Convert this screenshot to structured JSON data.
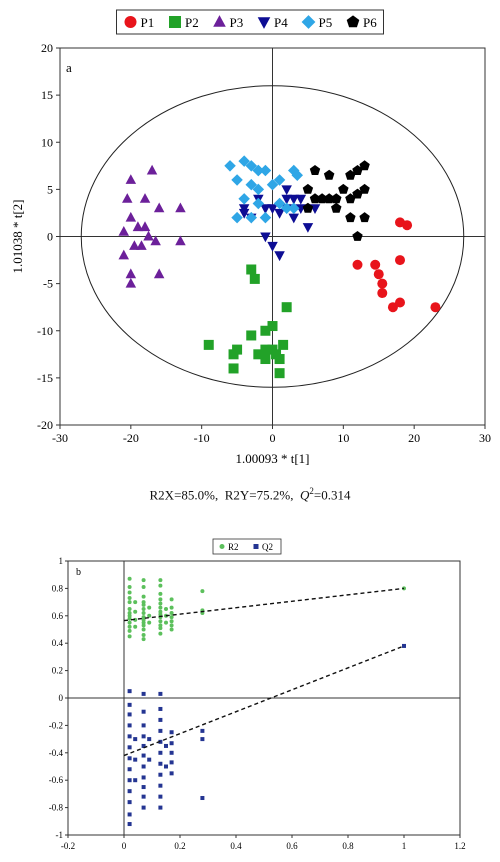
{
  "colors": {
    "P1": "#e8141b",
    "P2": "#22a228",
    "P3": "#6c209a",
    "P4": "#0d0d94",
    "P5": "#2fa6e6",
    "P6": "#000000",
    "R2": "#5cc05c",
    "Q2": "#243592"
  },
  "caption": {
    "r2x": "R2X=85.0%,",
    "r2y": "R2Y=75.2%,",
    "q_symbol": "Q",
    "q_sup": "2",
    "q_value": "=0.314"
  },
  "chart_data": [
    {
      "type": "scatter",
      "panel_label": "a",
      "xlabel": "1.00093 * t[1]",
      "ylabel": "1.01038 * t[2]",
      "xlim": [
        -30,
        30
      ],
      "ylim": [
        -20,
        20
      ],
      "xticks": [
        -30,
        -20,
        -10,
        0,
        10,
        20,
        30
      ],
      "yticks": [
        -20,
        -15,
        -10,
        -5,
        0,
        5,
        10,
        15,
        20
      ],
      "ellipse": {
        "center": [
          0,
          0
        ],
        "rx": 27,
        "ry": 16
      },
      "legend_position": "top",
      "series": [
        {
          "name": "P1",
          "marker": "circle",
          "points": [
            [
              18,
              1.5
            ],
            [
              19,
              1.2
            ],
            [
              12,
              -3
            ],
            [
              14.5,
              -3
            ],
            [
              15,
              -4
            ],
            [
              15.5,
              -5
            ],
            [
              15.5,
              -6
            ],
            [
              18,
              -2.5
            ],
            [
              17,
              -7.5
            ],
            [
              18,
              -7
            ],
            [
              23,
              -7.5
            ]
          ]
        },
        {
          "name": "P2",
          "marker": "square",
          "points": [
            [
              -9,
              -11.5
            ],
            [
              -5,
              -12
            ],
            [
              -5.5,
              -12.5
            ],
            [
              -5.5,
              -14
            ],
            [
              -3,
              -10.5
            ],
            [
              -1,
              -10
            ],
            [
              -1,
              -12
            ],
            [
              -2,
              -12.5
            ],
            [
              -1,
              -13
            ],
            [
              0,
              -9.5
            ],
            [
              0,
              -12
            ],
            [
              0.5,
              -12.5
            ],
            [
              1,
              -13
            ],
            [
              1,
              -14.5
            ],
            [
              1.5,
              -11.5
            ],
            [
              -3,
              -3.5
            ],
            [
              -2.5,
              -4.5
            ],
            [
              2,
              -7.5
            ]
          ]
        },
        {
          "name": "P3",
          "marker": "triangle",
          "points": [
            [
              -20,
              6
            ],
            [
              -17,
              7
            ],
            [
              -20.5,
              4
            ],
            [
              -18,
              4
            ],
            [
              -16,
              3
            ],
            [
              -20,
              2
            ],
            [
              -18,
              1
            ],
            [
              -13,
              3
            ],
            [
              -21,
              0.5
            ],
            [
              -19,
              1
            ],
            [
              -17.5,
              0
            ],
            [
              -16.5,
              -0.5
            ],
            [
              -19.5,
              -1
            ],
            [
              -18.5,
              -1
            ],
            [
              -13,
              -0.5
            ],
            [
              -21,
              -2
            ],
            [
              -20,
              -4
            ],
            [
              -16,
              -4
            ],
            [
              -20,
              -5
            ]
          ]
        },
        {
          "name": "P4",
          "marker": "triangle-down",
          "points": [
            [
              -4,
              3
            ],
            [
              -2,
              4
            ],
            [
              -1,
              3
            ],
            [
              0,
              3
            ],
            [
              1,
              2.5
            ],
            [
              2,
              3
            ],
            [
              3,
              2
            ],
            [
              4,
              3
            ],
            [
              5,
              1
            ],
            [
              2,
              5
            ],
            [
              3,
              4
            ],
            [
              -3,
              2
            ],
            [
              -4,
              2.5
            ],
            [
              1,
              -2
            ],
            [
              0,
              -1
            ],
            [
              -1,
              0
            ],
            [
              2,
              4
            ],
            [
              4,
              4
            ],
            [
              6,
              3
            ]
          ]
        },
        {
          "name": "P5",
          "marker": "diamond",
          "points": [
            [
              -6,
              7.5
            ],
            [
              -4,
              8
            ],
            [
              -3,
              7.5
            ],
            [
              -2,
              7
            ],
            [
              -1,
              7
            ],
            [
              -5,
              6
            ],
            [
              -3,
              5.5
            ],
            [
              -2,
              5
            ],
            [
              0,
              5.5
            ],
            [
              -4,
              4
            ],
            [
              -2,
              3.5
            ],
            [
              -5,
              2
            ],
            [
              -3,
              2
            ],
            [
              -1,
              2
            ],
            [
              1,
              3.5
            ],
            [
              3,
              7
            ],
            [
              3.5,
              6.5
            ],
            [
              2,
              3
            ],
            [
              3,
              3
            ],
            [
              1,
              6
            ],
            [
              -2,
              7
            ]
          ]
        },
        {
          "name": "P6",
          "marker": "pentagon",
          "points": [
            [
              6,
              7
            ],
            [
              8,
              6.5
            ],
            [
              10,
              5
            ],
            [
              11,
              6.5
            ],
            [
              12,
              7
            ],
            [
              13,
              7.5
            ],
            [
              13,
              5
            ],
            [
              12,
              4.5
            ],
            [
              11,
              4
            ],
            [
              9,
              4
            ],
            [
              8,
              4
            ],
            [
              7,
              4
            ],
            [
              6,
              4
            ],
            [
              5,
              5
            ],
            [
              5,
              3
            ],
            [
              9,
              3
            ],
            [
              11,
              2
            ],
            [
              13,
              2
            ],
            [
              12,
              0
            ]
          ]
        }
      ]
    },
    {
      "type": "scatter",
      "panel_label": "b",
      "xlim": [
        -0.2,
        1.2
      ],
      "ylim": [
        -1,
        1
      ],
      "xticks": [
        -0.2,
        0,
        0.2,
        0.4,
        0.6,
        0.8,
        1,
        1.2
      ],
      "ytick_labels": [
        "1",
        "0.8",
        "0.6",
        "0.4",
        "0.2",
        "0",
        "-0.2",
        "-0.4",
        "-0.6",
        "-0.8",
        "-1"
      ],
      "legend_position": "top",
      "series": [
        {
          "name": "R2",
          "marker": "circle",
          "points": [
            [
              0.02,
              0.87
            ],
            [
              0.02,
              0.81
            ],
            [
              0.02,
              0.77
            ],
            [
              0.02,
              0.73
            ],
            [
              0.02,
              0.7
            ],
            [
              0.02,
              0.65
            ],
            [
              0.02,
              0.62
            ],
            [
              0.02,
              0.6
            ],
            [
              0.02,
              0.58
            ],
            [
              0.02,
              0.55
            ],
            [
              0.02,
              0.52
            ],
            [
              0.02,
              0.49
            ],
            [
              0.02,
              0.45
            ],
            [
              0.04,
              0.7
            ],
            [
              0.04,
              0.63
            ],
            [
              0.04,
              0.57
            ],
            [
              0.04,
              0.52
            ],
            [
              0.07,
              0.86
            ],
            [
              0.07,
              0.81
            ],
            [
              0.07,
              0.74
            ],
            [
              0.07,
              0.7
            ],
            [
              0.07,
              0.68
            ],
            [
              0.07,
              0.65
            ],
            [
              0.07,
              0.62
            ],
            [
              0.07,
              0.59
            ],
            [
              0.07,
              0.57
            ],
            [
              0.07,
              0.55
            ],
            [
              0.07,
              0.53
            ],
            [
              0.07,
              0.5
            ],
            [
              0.07,
              0.46
            ],
            [
              0.07,
              0.43
            ],
            [
              0.09,
              0.66
            ],
            [
              0.09,
              0.6
            ],
            [
              0.09,
              0.55
            ],
            [
              0.13,
              0.86
            ],
            [
              0.13,
              0.82
            ],
            [
              0.13,
              0.76
            ],
            [
              0.13,
              0.72
            ],
            [
              0.13,
              0.69
            ],
            [
              0.13,
              0.66
            ],
            [
              0.13,
              0.63
            ],
            [
              0.13,
              0.61
            ],
            [
              0.13,
              0.59
            ],
            [
              0.13,
              0.56
            ],
            [
              0.13,
              0.53
            ],
            [
              0.13,
              0.51
            ],
            [
              0.13,
              0.47
            ],
            [
              0.15,
              0.65
            ],
            [
              0.15,
              0.6
            ],
            [
              0.15,
              0.55
            ],
            [
              0.17,
              0.72
            ],
            [
              0.17,
              0.66
            ],
            [
              0.17,
              0.62
            ],
            [
              0.17,
              0.59
            ],
            [
              0.17,
              0.56
            ],
            [
              0.17,
              0.53
            ],
            [
              0.17,
              0.5
            ],
            [
              0.28,
              0.78
            ],
            [
              0.28,
              0.64
            ],
            [
              0.28,
              0.62
            ],
            [
              1,
              0.8
            ]
          ]
        },
        {
          "name": "Q2",
          "marker": "square",
          "points": [
            [
              0.02,
              0.05
            ],
            [
              0.02,
              -0.05
            ],
            [
              0.02,
              -0.12
            ],
            [
              0.02,
              -0.2
            ],
            [
              0.02,
              -0.28
            ],
            [
              0.02,
              -0.36
            ],
            [
              0.02,
              -0.44
            ],
            [
              0.02,
              -0.52
            ],
            [
              0.02,
              -0.6
            ],
            [
              0.02,
              -0.68
            ],
            [
              0.02,
              -0.76
            ],
            [
              0.02,
              -0.85
            ],
            [
              0.02,
              -0.92
            ],
            [
              0.04,
              -0.3
            ],
            [
              0.04,
              -0.45
            ],
            [
              0.04,
              -0.6
            ],
            [
              0.07,
              0.03
            ],
            [
              0.07,
              -0.1
            ],
            [
              0.07,
              -0.2
            ],
            [
              0.07,
              -0.28
            ],
            [
              0.07,
              -0.35
            ],
            [
              0.07,
              -0.42
            ],
            [
              0.07,
              -0.5
            ],
            [
              0.07,
              -0.58
            ],
            [
              0.07,
              -0.65
            ],
            [
              0.07,
              -0.72
            ],
            [
              0.07,
              -0.8
            ],
            [
              0.09,
              -0.3
            ],
            [
              0.09,
              -0.45
            ],
            [
              0.13,
              0.03
            ],
            [
              0.13,
              -0.08
            ],
            [
              0.13,
              -0.16
            ],
            [
              0.13,
              -0.24
            ],
            [
              0.13,
              -0.32
            ],
            [
              0.13,
              -0.4
            ],
            [
              0.13,
              -0.48
            ],
            [
              0.13,
              -0.56
            ],
            [
              0.13,
              -0.64
            ],
            [
              0.13,
              -0.72
            ],
            [
              0.13,
              -0.8
            ],
            [
              0.15,
              -0.35
            ],
            [
              0.15,
              -0.5
            ],
            [
              0.17,
              -0.25
            ],
            [
              0.17,
              -0.33
            ],
            [
              0.17,
              -0.4
            ],
            [
              0.17,
              -0.47
            ],
            [
              0.17,
              -0.55
            ],
            [
              0.28,
              -0.24
            ],
            [
              0.28,
              -0.3
            ],
            [
              0.28,
              -0.73
            ],
            [
              1,
              0.38
            ]
          ]
        }
      ],
      "trend_lines": [
        {
          "series": "R2",
          "from": [
            0,
            0.565
          ],
          "to": [
            1,
            0.8
          ],
          "style": "dashed"
        },
        {
          "series": "Q2",
          "from": [
            0,
            -0.42
          ],
          "to": [
            1,
            0.38
          ],
          "style": "dashed"
        }
      ]
    }
  ]
}
